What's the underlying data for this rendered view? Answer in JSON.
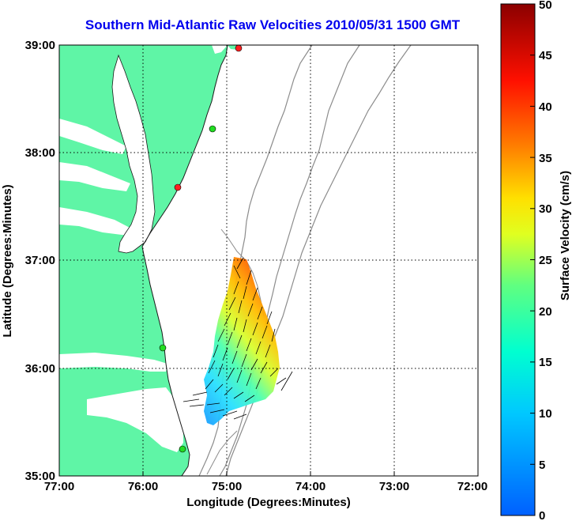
{
  "title": "Southern Mid-Atlantic Raw Velocities 2010/05/31 1500 GMT",
  "xlabel": "Longitude (Degrees:Minutes)",
  "ylabel": "Latitude (Degrees:Minutes)",
  "x_ticks": [
    "77:00",
    "76:00",
    "75:00",
    "74:00",
    "73:00",
    "72:00"
  ],
  "y_ticks": [
    "39:00",
    "38:00",
    "37:00",
    "36:00",
    "35:00"
  ],
  "colorbar": {
    "label": "Surface Velocity (cm/s)",
    "ticks": [
      "50",
      "45",
      "40",
      "35",
      "30",
      "25",
      "20",
      "15",
      "10",
      "5",
      "0"
    ],
    "range": [
      0,
      50
    ],
    "colors": [
      "#8b0000",
      "#ff0000",
      "#ff8000",
      "#ffff00",
      "#80ff80",
      "#00ffff",
      "#0080ff"
    ]
  },
  "map": {
    "land_color": "#5ff5a6",
    "bathymetry_color": "#8c8c8c",
    "grid": "dotted",
    "lon_range": [
      "77:00",
      "72:00"
    ],
    "lat_range": [
      "35:00",
      "39:00"
    ]
  },
  "stations": [
    {
      "color": "#ff2020"
    },
    {
      "color": "#22dd22"
    },
    {
      "color": "#ff2020"
    },
    {
      "color": "#22dd22"
    },
    {
      "color": "#22dd22"
    }
  ]
}
